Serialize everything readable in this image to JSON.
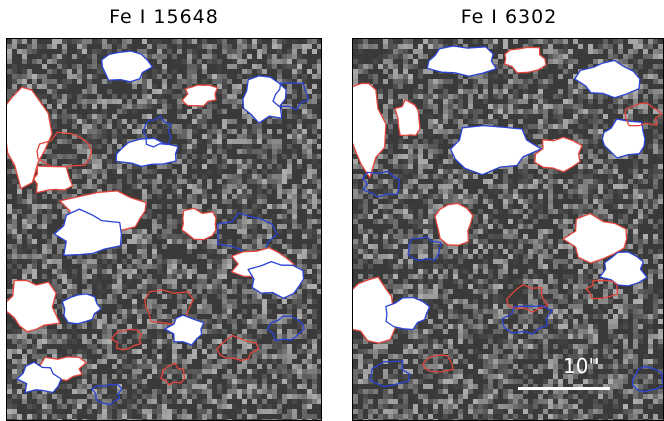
{
  "panels": [
    {
      "title": "Fe I 15648"
    },
    {
      "title": "Fe I 6302"
    }
  ],
  "scale_bar": {
    "label": "10''"
  },
  "colors": {
    "contour_a": "#e2463c",
    "contour_b": "#2a44d6",
    "saturated": "#ffffff",
    "background": "#3a3a3a"
  }
}
